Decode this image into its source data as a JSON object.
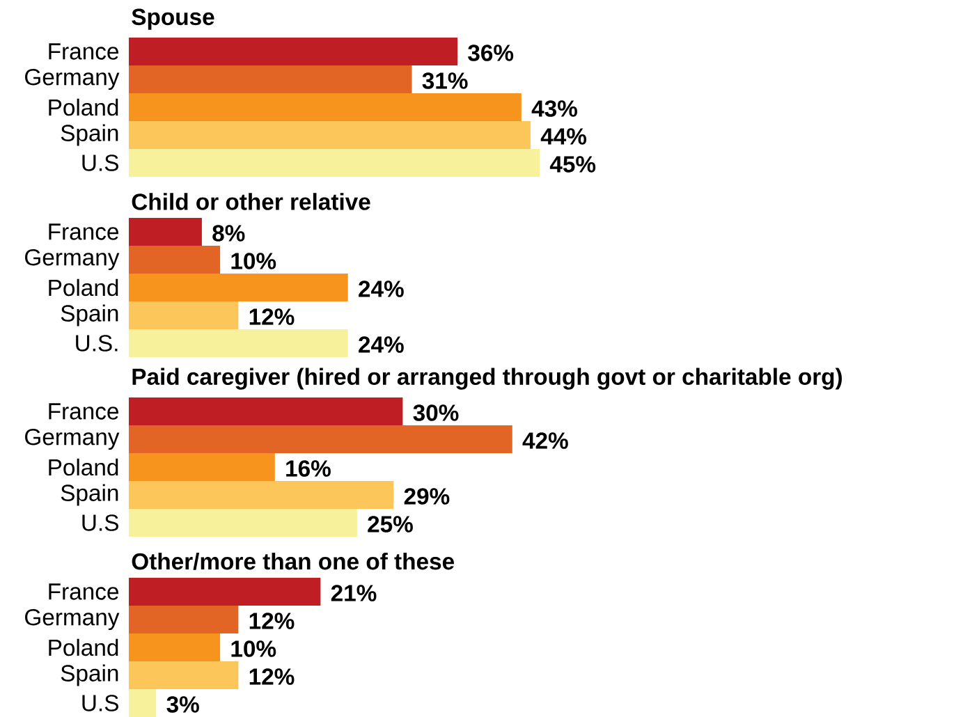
{
  "chart_data": [
    {
      "type": "bar",
      "orientation": "horizontal",
      "title": "Spouse",
      "categories": [
        "France",
        "Germany",
        "Poland",
        "Spain",
        "U.S"
      ],
      "values": [
        36,
        31,
        43,
        44,
        45
      ],
      "colors": [
        "#be1e24",
        "#e26526",
        "#f7941d",
        "#fdc65a",
        "#f6f19a"
      ],
      "value_labels": [
        "36%",
        "31%",
        "43%",
        "44%",
        "45%"
      ]
    },
    {
      "type": "bar",
      "orientation": "horizontal",
      "title": "Child or other relative",
      "categories": [
        "France",
        "Germany",
        "Poland",
        "Spain",
        "U.S."
      ],
      "values": [
        8,
        10,
        24,
        12,
        24
      ],
      "colors": [
        "#be1e24",
        "#e26526",
        "#f7941d",
        "#fdc65a",
        "#f6f19a"
      ],
      "value_labels": [
        "8%",
        "10%",
        "24%",
        "12%",
        "24%"
      ]
    },
    {
      "type": "bar",
      "orientation": "horizontal",
      "title": "Paid caregiver (hired or arranged through govt or charitable org)",
      "categories": [
        "France",
        "Germany",
        "Poland",
        "Spain",
        "U.S"
      ],
      "values": [
        30,
        42,
        16,
        29,
        25
      ],
      "colors": [
        "#be1e24",
        "#e26526",
        "#f7941d",
        "#fdc65a",
        "#f6f19a"
      ],
      "value_labels": [
        "30%",
        "42%",
        "16%",
        "29%",
        "25%"
      ]
    },
    {
      "type": "bar",
      "orientation": "horizontal",
      "title": "Other/more than one of these",
      "categories": [
        "France",
        "Germany",
        "Poland",
        "Spain",
        "U.S"
      ],
      "values": [
        21,
        12,
        10,
        12,
        3
      ],
      "colors": [
        "#be1e24",
        "#e26526",
        "#f7941d",
        "#fdc65a",
        "#f6f19a"
      ],
      "value_labels": [
        "21%",
        "12%",
        "10%",
        "12%",
        "3%"
      ]
    }
  ]
}
